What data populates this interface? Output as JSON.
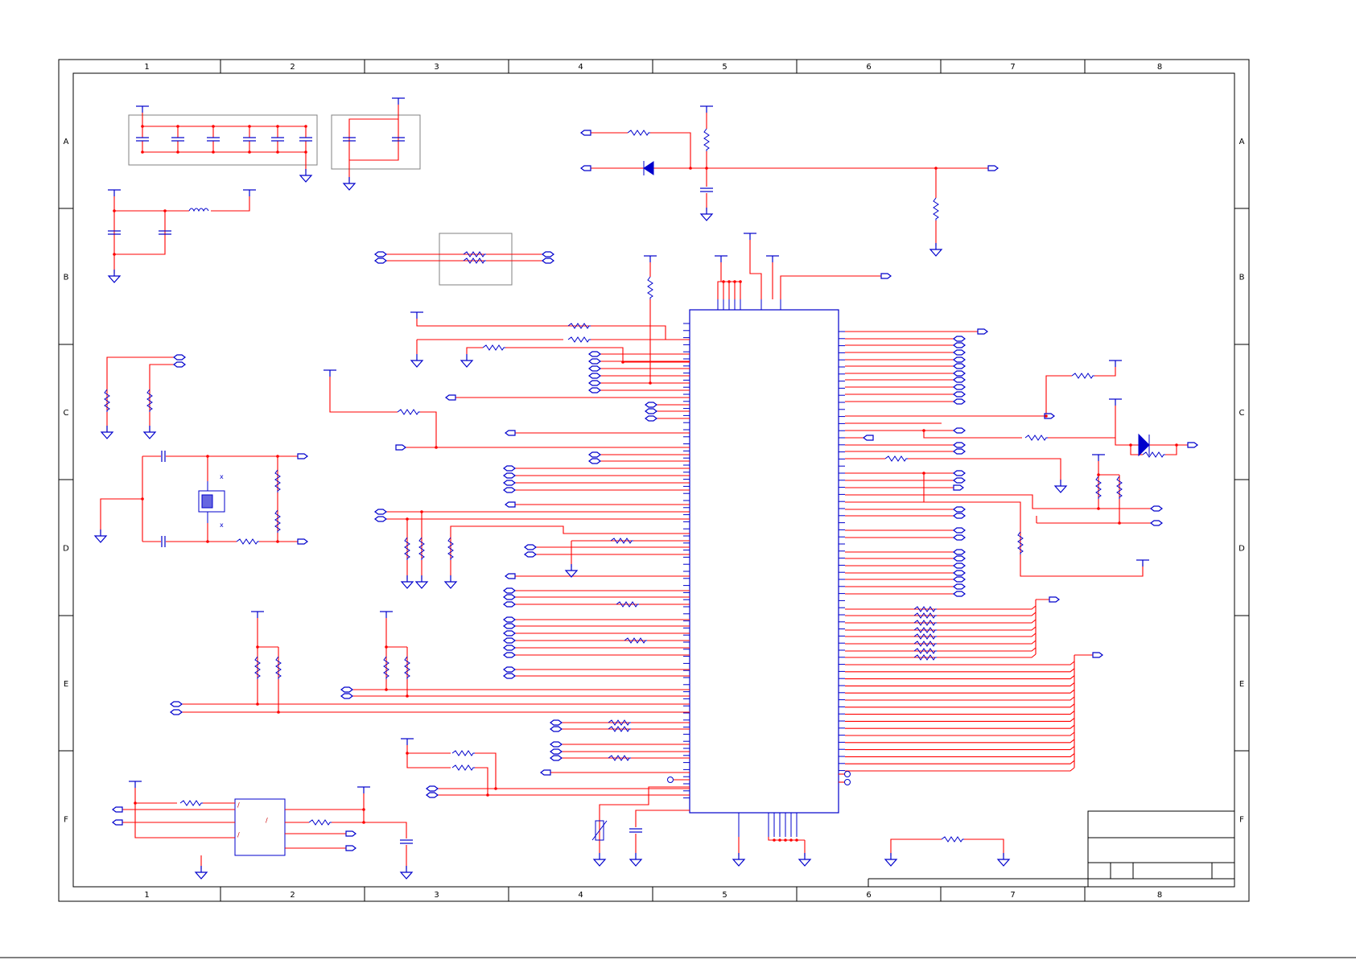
{
  "sheet": {
    "columns": [
      "1",
      "2",
      "3",
      "4",
      "5",
      "6",
      "7",
      "8"
    ],
    "rows": [
      "A",
      "B",
      "C",
      "D",
      "E",
      "F"
    ]
  },
  "colors": {
    "wire": "#ff0000",
    "component": "#0000cc",
    "frame": "#000000",
    "group_box": "#808080"
  }
}
